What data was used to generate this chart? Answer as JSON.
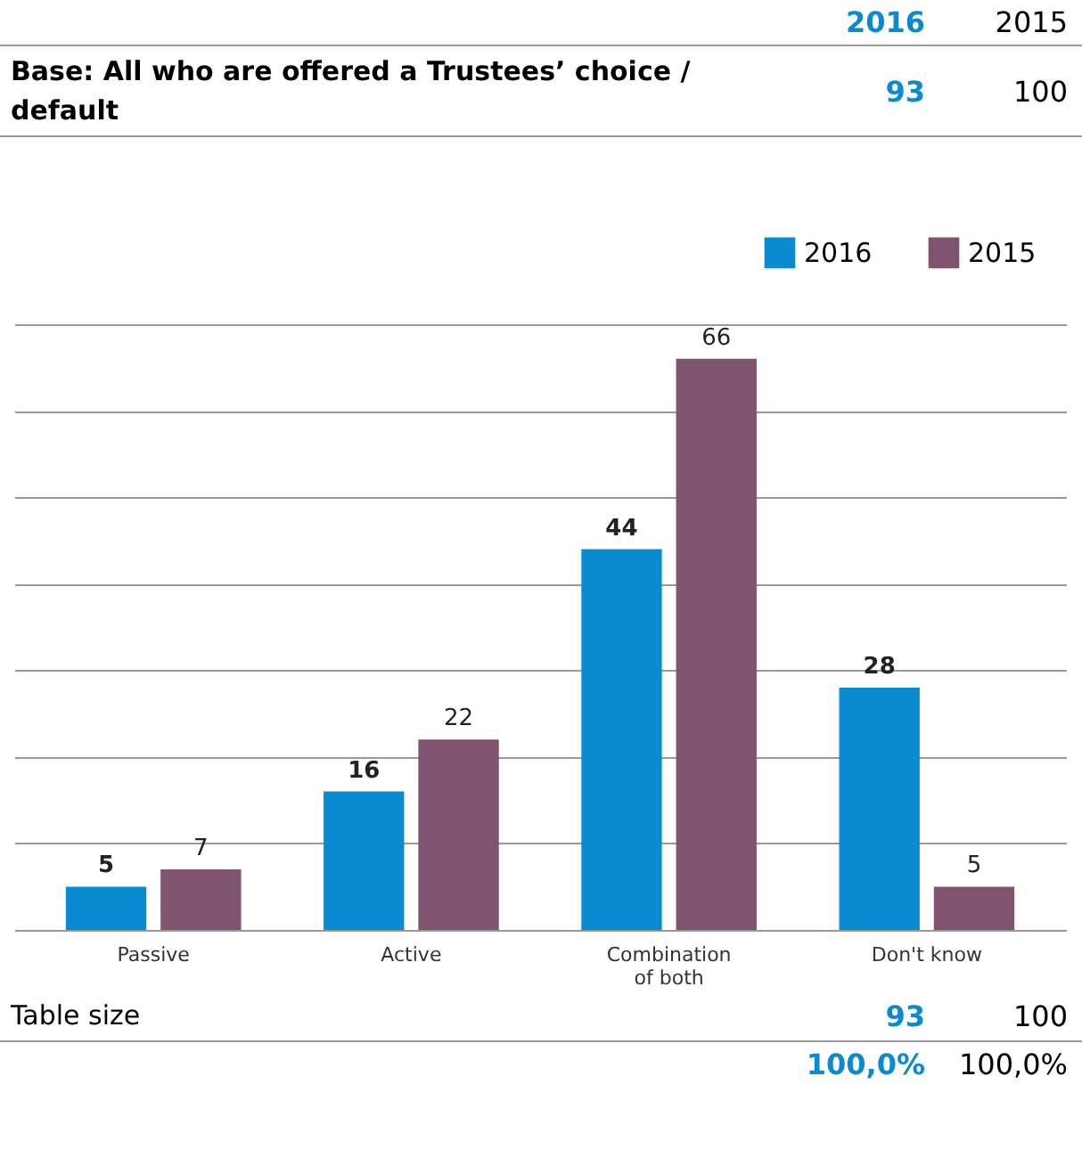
{
  "chart_data": {
    "type": "bar",
    "categories": [
      "Passive",
      "Active",
      "Combination of both",
      "Don't know"
    ],
    "series": [
      {
        "name": "2016",
        "color": "#0a8ad0",
        "values": [
          5,
          16,
          44,
          28
        ]
      },
      {
        "name": "2015",
        "color": "#80546f",
        "values": [
          7,
          22,
          66,
          5
        ]
      }
    ],
    "ylim": [
      0,
      70
    ],
    "yticks": [
      {
        "value": 0,
        "label": null
      },
      {
        "value": 10,
        "label": null
      },
      {
        "value": 20,
        "label": null
      },
      {
        "value": 30,
        "label": null
      },
      {
        "value": 40,
        "label": null
      },
      {
        "value": 50,
        "label": null
      },
      {
        "value": 60,
        "label": null
      },
      {
        "value": 70,
        "label": null
      }
    ],
    "grid": "y",
    "legend": "top right",
    "data_labels": true,
    "tick_labels": "x",
    "annotations": [
      "2016",
      "2015",
      "Base: All who are offered a Trustees’ choice / default",
      "93",
      "100",
      "Table size",
      "93",
      "100",
      "100,0%",
      "100,0%"
    ]
  }
}
